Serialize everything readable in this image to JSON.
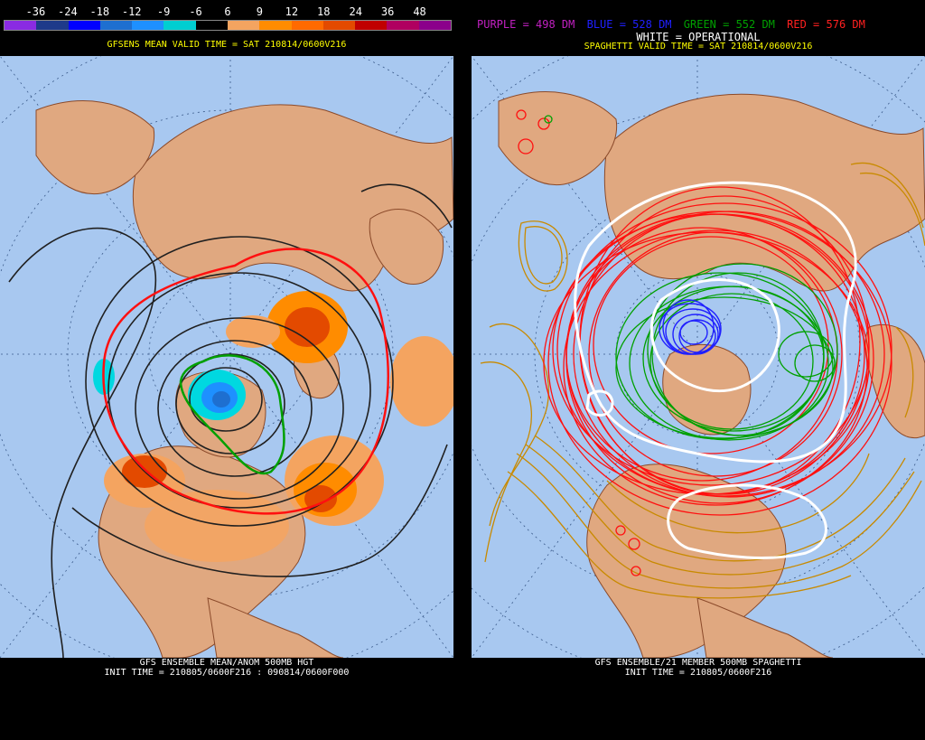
{
  "left": {
    "legend": {
      "values": [
        "-36",
        "-24",
        "-18",
        "-12",
        "-9",
        "-6",
        "6",
        "9",
        "12",
        "18",
        "24",
        "36",
        "48"
      ],
      "colors": [
        "#8a2be2",
        "#1e3a8a",
        "#0000ff",
        "#1e6fd0",
        "#1e90ff",
        "#00ced1",
        "#000000",
        "#f4a460",
        "#ff8c00",
        "#ff6a00",
        "#e34a00",
        "#c00000",
        "#b00060",
        "#8b008b"
      ]
    },
    "valid_time": "GFSENS MEAN VALID TIME = SAT 210814/0600V216",
    "footer_line1": "GFS ENSEMBLE MEAN/ANOM 500MB HGT",
    "footer_line2": "INIT TIME = 210805/0600F216 : 090814/0600F000"
  },
  "right": {
    "legend": {
      "purple": "PURPLE = 498 DM",
      "blue": "BLUE = 528 DM",
      "green": "GREEN = 552 DM",
      "red": "RED = 576 DM",
      "white": "WHITE = OPERATIONAL"
    },
    "valid_time": "SPAGHETTI VALID TIME = SAT 210814/0600V216",
    "footer_line1": "GFS ENSEMBLE/21 MEMBER 500MB SPAGHETTI",
    "footer_line2": "INIT TIME = 210805/0600F216"
  },
  "colors": {
    "ocean": "#a8c8f0",
    "land": "#e0a880",
    "border": "#8b4a2a",
    "purple": "#c020c0",
    "blue": "#2020ff",
    "green": "#00a000",
    "red": "#ff2020",
    "gold": "#c88a00",
    "white": "#ffffff"
  }
}
